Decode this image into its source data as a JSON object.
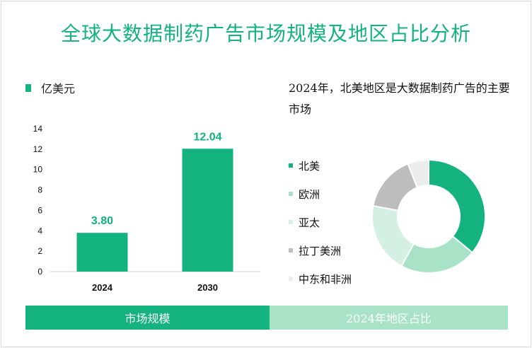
{
  "title": "全球大数据制药广告市场规模及地区占比分析",
  "unit_label": "亿美元",
  "description": "2024年，北美地区是大数据制药广告的主要市场",
  "footer": {
    "left": "市场规模",
    "right": "2024年地区占比"
  },
  "colors": {
    "accent": "#13b27f",
    "light": "#a8e3c7"
  },
  "chart_data": [
    {
      "type": "bar",
      "categories": [
        "2024",
        "2030"
      ],
      "values": [
        3.8,
        12.04
      ],
      "value_labels": [
        "3.80",
        "12.04"
      ],
      "ylim": [
        0,
        14
      ],
      "yticks": [
        0,
        2,
        4,
        6,
        8,
        10,
        12,
        14
      ],
      "color": "#13b27f"
    },
    {
      "type": "pie",
      "donut": true,
      "labels": [
        "北美",
        "欧洲",
        "亚太",
        "拉丁美洲",
        "中东和非洲"
      ],
      "values": [
        36,
        22,
        20,
        16,
        6
      ],
      "colors": [
        "#13b27f",
        "#a8e3c7",
        "#d3f0e2",
        "#bdbdbd",
        "#ececec"
      ]
    }
  ]
}
